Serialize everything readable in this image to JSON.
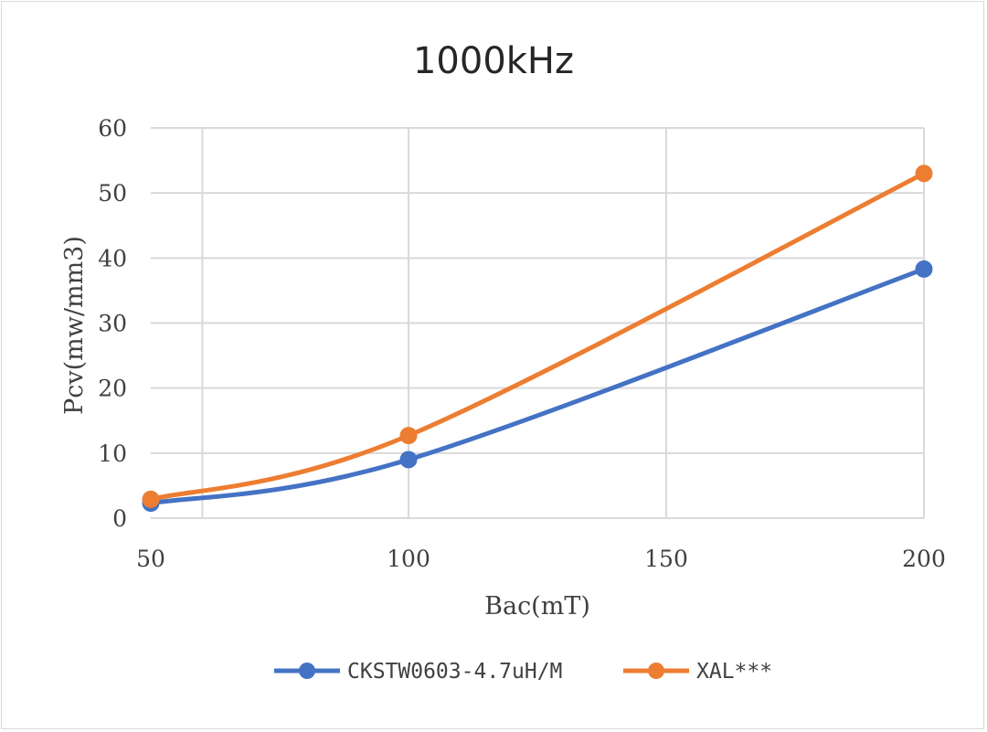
{
  "chart_data": {
    "type": "line",
    "title": "1000kHz",
    "xlabel": "Bac(mT)",
    "ylabel": "Pcv(mw/mm3)",
    "xlim": [
      50,
      200
    ],
    "ylim": [
      0,
      60
    ],
    "xticks": [
      50,
      100,
      150,
      200
    ],
    "yticks": [
      0,
      10,
      20,
      30,
      40,
      50,
      60
    ],
    "grid": true,
    "smooth": true,
    "legend_position": "bottom",
    "series": [
      {
        "name": "CKSTW0603-4.7uH/M",
        "color": "#4472C4",
        "points": [
          [
            50,
            2.3
          ],
          [
            100,
            9.0
          ],
          [
            200,
            38.3
          ]
        ]
      },
      {
        "name": "XAL***",
        "color": "#ED7D31",
        "points": [
          [
            50,
            2.9
          ],
          [
            100,
            12.7
          ],
          [
            200,
            53.0
          ]
        ]
      }
    ]
  }
}
